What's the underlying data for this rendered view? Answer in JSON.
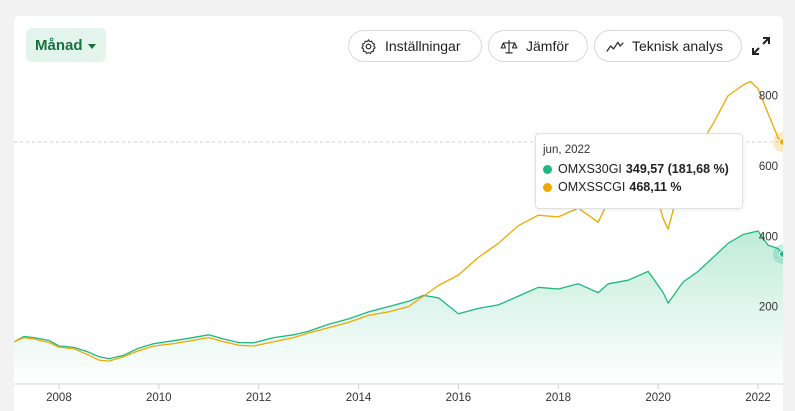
{
  "toolbar": {
    "period_label": "Månad",
    "settings_label": "Inställningar",
    "compare_label": "Jämför",
    "tech_label": "Teknisk analys"
  },
  "tooltip": {
    "date": "jun, 2022",
    "s1_name": "OMXS30GI",
    "s1_value": "349,57 (181,68 %)",
    "s2_name": "OMXSSCGI",
    "s2_value": "468,11 %"
  },
  "chart_data": {
    "type": "line",
    "x_ticks": [
      "2008",
      "2010",
      "2012",
      "2014",
      "2016",
      "2018",
      "2020",
      "2022"
    ],
    "y_ticks": [
      "200",
      "400",
      "600",
      "800"
    ],
    "xlim": [
      2007.1,
      2022.5
    ],
    "ylim": [
      -20,
      850
    ],
    "series": [
      {
        "name": "OMXS30GI",
        "color": "#1db87e",
        "x": [
          2007.1,
          2007.3,
          2007.5,
          2007.8,
          2008.0,
          2008.3,
          2008.6,
          2008.8,
          2009.0,
          2009.3,
          2009.6,
          2009.9,
          2010.3,
          2010.6,
          2011.0,
          2011.3,
          2011.6,
          2011.9,
          2012.3,
          2012.7,
          2013.0,
          2013.4,
          2013.8,
          2014.2,
          2014.6,
          2015.0,
          2015.3,
          2015.6,
          2016.0,
          2016.4,
          2016.8,
          2017.2,
          2017.6,
          2018.0,
          2018.4,
          2018.8,
          2019.0,
          2019.4,
          2019.8,
          2020.1,
          2020.2,
          2020.5,
          2020.8,
          2021.1,
          2021.4,
          2021.7,
          2021.85,
          2022.0,
          2022.2,
          2022.4,
          2022.5
        ],
        "values": [
          100,
          115,
          112,
          104,
          88,
          84,
          70,
          58,
          52,
          62,
          82,
          95,
          103,
          110,
          120,
          108,
          98,
          97,
          112,
          120,
          130,
          150,
          165,
          185,
          200,
          215,
          232,
          225,
          180,
          195,
          205,
          230,
          255,
          250,
          265,
          240,
          265,
          275,
          300,
          240,
          210,
          270,
          300,
          340,
          380,
          405,
          410,
          415,
          375,
          365,
          349.57
        ]
      },
      {
        "name": "OMXSSCGI",
        "color": "#f0a900",
        "x": [
          2007.1,
          2007.3,
          2007.5,
          2007.8,
          2008.0,
          2008.3,
          2008.6,
          2008.8,
          2009.0,
          2009.3,
          2009.6,
          2009.9,
          2010.3,
          2010.6,
          2011.0,
          2011.3,
          2011.6,
          2011.9,
          2012.3,
          2012.7,
          2013.0,
          2013.4,
          2013.8,
          2014.2,
          2014.6,
          2015.0,
          2015.3,
          2015.6,
          2016.0,
          2016.4,
          2016.8,
          2017.2,
          2017.6,
          2018.0,
          2018.4,
          2018.8,
          2019.0,
          2019.4,
          2019.8,
          2020.1,
          2020.2,
          2020.5,
          2020.8,
          2021.1,
          2021.4,
          2021.7,
          2021.85,
          2022.0,
          2022.2,
          2022.4,
          2022.5
        ],
        "values": [
          100,
          112,
          108,
          98,
          85,
          80,
          62,
          48,
          45,
          58,
          75,
          88,
          95,
          102,
          112,
          100,
          90,
          88,
          100,
          112,
          125,
          140,
          155,
          175,
          185,
          200,
          230,
          260,
          290,
          340,
          380,
          430,
          460,
          455,
          480,
          440,
          500,
          560,
          600,
          450,
          420,
          580,
          650,
          720,
          800,
          830,
          840,
          820,
          750,
          680,
          668
        ]
      }
    ]
  }
}
